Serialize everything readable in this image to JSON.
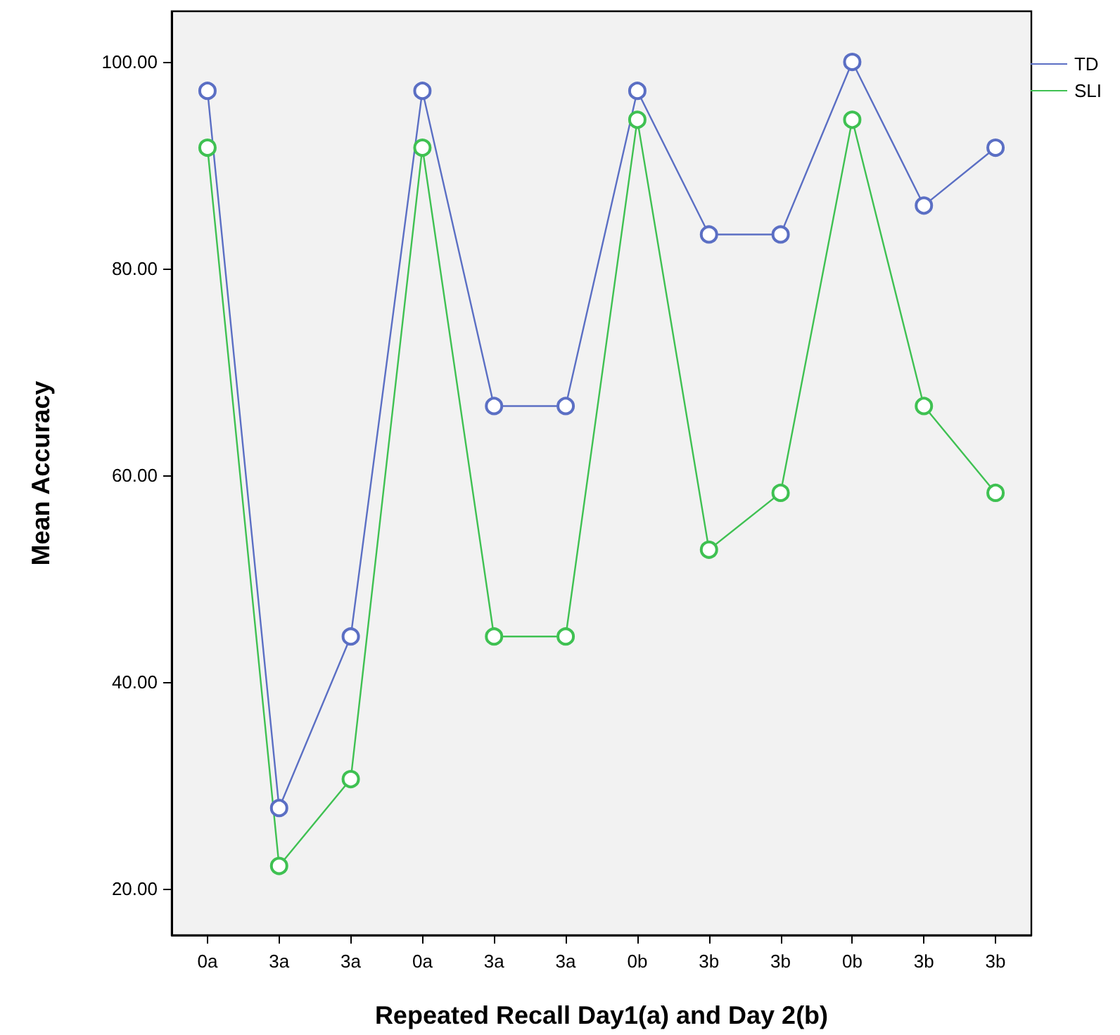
{
  "chart_data": {
    "type": "line",
    "xlabel": "Repeated Recall Day1(a) and Day 2(b)",
    "ylabel": "Mean Accuracy",
    "categories": [
      "0a",
      "3a",
      "3a",
      "0a",
      "3a",
      "3a",
      "0b",
      "3b",
      "3b",
      "0b",
      "3b",
      "3b"
    ],
    "series": [
      {
        "name": "TD",
        "color": "#5b6fc4",
        "values": [
          97.2,
          27.8,
          44.4,
          97.2,
          66.7,
          66.7,
          97.2,
          83.3,
          83.3,
          100,
          86.1,
          91.7
        ]
      },
      {
        "name": "SLI",
        "color": "#3fc152",
        "values": [
          91.7,
          22.2,
          30.6,
          91.7,
          44.4,
          44.4,
          94.4,
          52.8,
          58.3,
          94.4,
          66.7,
          58.3
        ]
      }
    ],
    "ylim": [
      15.5,
      104.9
    ],
    "yticks": [
      {
        "value": 20,
        "label": "20.00"
      },
      {
        "value": 40,
        "label": "40.00"
      },
      {
        "value": 60,
        "label": "60.00"
      },
      {
        "value": 80,
        "label": "80.00"
      },
      {
        "value": 100,
        "label": "100.00"
      }
    ],
    "grid": false,
    "legend": "top right",
    "marker": "circle",
    "line_style": "solid"
  }
}
